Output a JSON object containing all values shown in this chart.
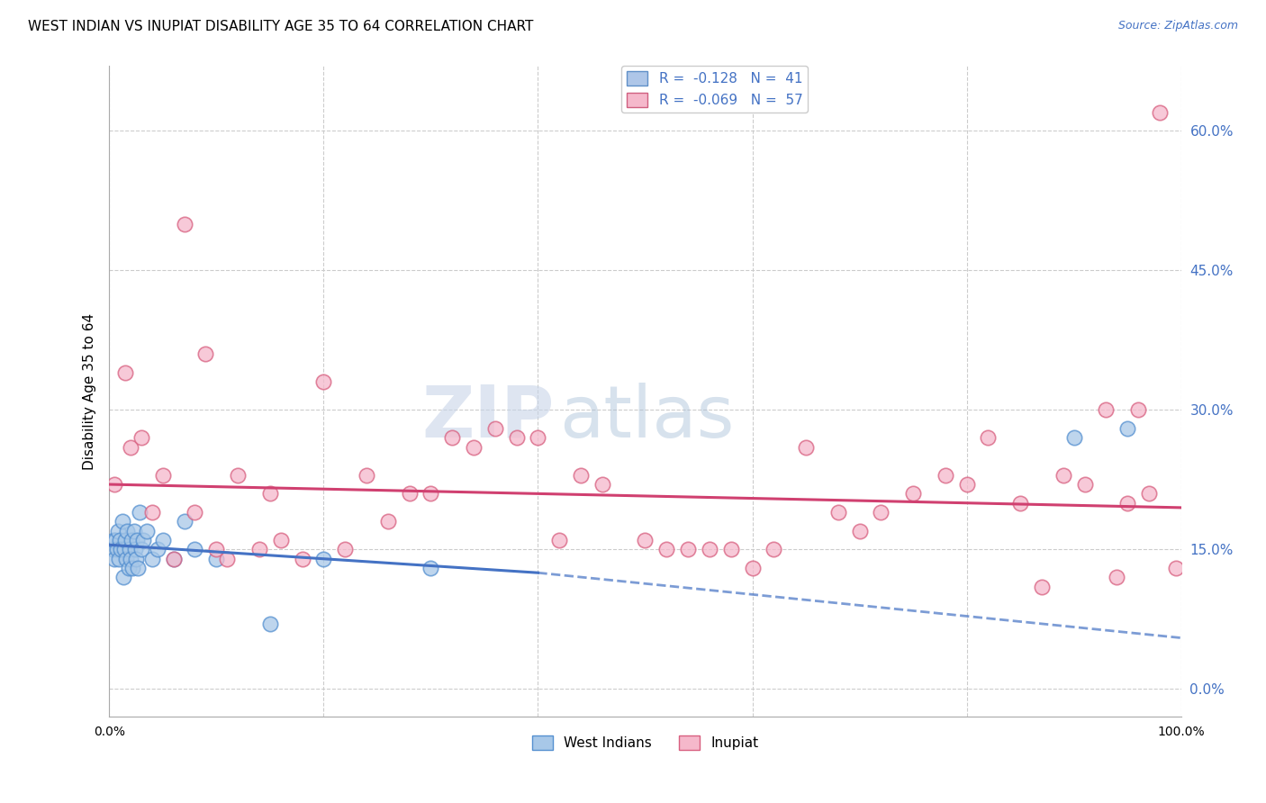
{
  "title": "WEST INDIAN VS INUPIAT DISABILITY AGE 35 TO 64 CORRELATION CHART",
  "source": "Source: ZipAtlas.com",
  "ylabel": "Disability Age 35 to 64",
  "xlim": [
    0,
    100
  ],
  "ylim": [
    -3,
    67
  ],
  "yticks": [
    0,
    15,
    30,
    45,
    60
  ],
  "ytick_labels": [
    "0.0%",
    "15.0%",
    "30.0%",
    "45.0%",
    "60.0%"
  ],
  "xticks": [
    0,
    20,
    40,
    60,
    80,
    100
  ],
  "west_indian_color": "#a8c8e8",
  "west_indian_edge": "#5590d0",
  "inupiat_color": "#f5b8cb",
  "inupiat_edge": "#d86080",
  "west_indian_line_color": "#4472c4",
  "inupiat_line_color": "#d04070",
  "wi_line_start_y": 15.5,
  "wi_line_end_y": 12.5,
  "wi_line_solid_end_x": 40,
  "in_line_start_y": 22.0,
  "in_line_end_y": 19.5,
  "blue_dashed_start_x": 40,
  "blue_dashed_start_y": 12.5,
  "blue_dashed_end_x": 100,
  "blue_dashed_end_y": 5.5,
  "west_indians_x": [
    0.3,
    0.4,
    0.5,
    0.6,
    0.7,
    0.8,
    0.9,
    1.0,
    1.1,
    1.2,
    1.3,
    1.4,
    1.5,
    1.6,
    1.7,
    1.8,
    1.9,
    2.0,
    2.1,
    2.2,
    2.3,
    2.4,
    2.5,
    2.6,
    2.7,
    2.8,
    3.0,
    3.2,
    3.5,
    4.0,
    4.5,
    5.0,
    6.0,
    7.0,
    8.0,
    10.0,
    15.0,
    20.0,
    30.0,
    90.0,
    95.0
  ],
  "west_indians_y": [
    15,
    16,
    14,
    16,
    15,
    17,
    14,
    16,
    15,
    18,
    12,
    15,
    16,
    14,
    17,
    13,
    15,
    14,
    16,
    13,
    17,
    15,
    14,
    16,
    13,
    19,
    15,
    16,
    17,
    14,
    15,
    16,
    14,
    18,
    15,
    14,
    7,
    14,
    13,
    27,
    28
  ],
  "inupiat_x": [
    0.5,
    1.5,
    2.0,
    3.0,
    4.0,
    5.0,
    6.0,
    7.0,
    8.0,
    9.0,
    10.0,
    11.0,
    12.0,
    14.0,
    15.0,
    16.0,
    18.0,
    20.0,
    22.0,
    24.0,
    26.0,
    28.0,
    30.0,
    32.0,
    34.0,
    36.0,
    38.0,
    40.0,
    42.0,
    44.0,
    46.0,
    50.0,
    52.0,
    54.0,
    56.0,
    58.0,
    60.0,
    62.0,
    65.0,
    68.0,
    70.0,
    72.0,
    75.0,
    78.0,
    80.0,
    82.0,
    85.0,
    87.0,
    89.0,
    91.0,
    93.0,
    94.0,
    95.0,
    96.0,
    97.0,
    98.0,
    99.5
  ],
  "inupiat_y": [
    22,
    34,
    26,
    27,
    19,
    23,
    14,
    50,
    19,
    36,
    15,
    14,
    23,
    15,
    21,
    16,
    14,
    33,
    15,
    23,
    18,
    21,
    21,
    27,
    26,
    28,
    27,
    27,
    16,
    23,
    22,
    16,
    15,
    15,
    15,
    15,
    13,
    15,
    26,
    19,
    17,
    19,
    21,
    23,
    22,
    27,
    20,
    11,
    23,
    22,
    30,
    12,
    20,
    30,
    21,
    62,
    13
  ],
  "watermark_zip": "ZIP",
  "watermark_atlas": "atlas"
}
